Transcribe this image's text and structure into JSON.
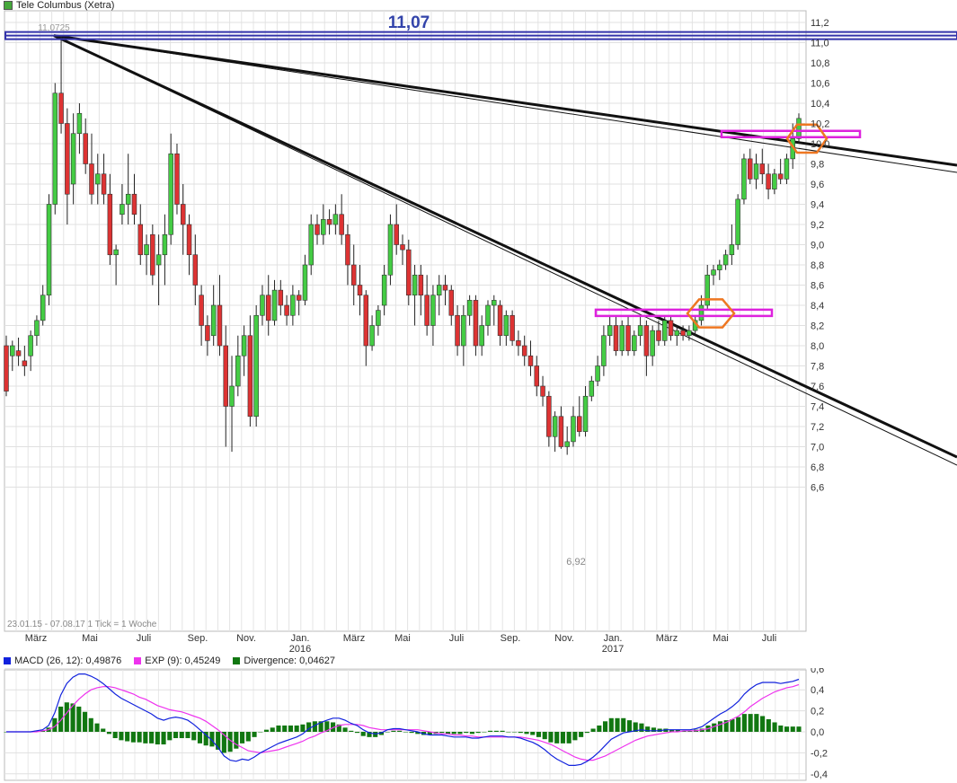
{
  "header": {
    "title": "Tele Columbus (Xetra)",
    "title_color": "#46a83c"
  },
  "annotations": {
    "resistance_label": "11,07",
    "high_label": "11,0725",
    "low_label": "6,92",
    "range_note": "23.01.15 - 07.08.17   1 Tick = 1 Woche"
  },
  "macd_legend": {
    "macd": "MACD (26, 12): 0,49876",
    "exp": "EXP (9): 0,45249",
    "divergence": "Divergence: 0,04627"
  },
  "colors": {
    "up": "#44cc44",
    "down": "#dd3333",
    "resistance": "#3333aa",
    "zone": "#dd22dd",
    "marker": "#ee7722",
    "macd": "#1122dd",
    "signal": "#ee33ee",
    "divergence": "#117711"
  },
  "chart_data": [
    {
      "type": "candlestick",
      "title": "Tele Columbus (Xetra)",
      "ylim": [
        6.4,
        11.3
      ],
      "yticks": [
        "6,6",
        "6,8",
        "7,0",
        "7,2",
        "7,4",
        "7,6",
        "7,8",
        "8,0",
        "8,2",
        "8,4",
        "8,6",
        "8,8",
        "9,0",
        "9,2",
        "9,4",
        "9,6",
        "9,8",
        "10,0",
        "10,2",
        "10,4",
        "10,6",
        "10,8",
        "11,0",
        "11,2"
      ],
      "xticks": [
        "März",
        "Mai",
        "Juli",
        "Sep.",
        "Nov.",
        "Jan.",
        "März",
        "Mai",
        "Juli",
        "Sep.",
        "Nov.",
        "Jan.",
        "März",
        "Mai",
        "Juli"
      ],
      "year_labels": [
        "2016",
        "2017"
      ],
      "ohlc": [
        [
          8.0,
          8.1,
          7.5,
          7.55
        ],
        [
          7.9,
          8.05,
          7.75,
          8.0
        ],
        [
          7.95,
          8.08,
          7.8,
          7.9
        ],
        [
          7.85,
          8.0,
          7.7,
          7.8
        ],
        [
          7.9,
          8.15,
          7.75,
          8.1
        ],
        [
          8.1,
          8.3,
          8.0,
          8.25
        ],
        [
          8.25,
          8.6,
          8.2,
          8.5
        ],
        [
          8.5,
          9.5,
          8.4,
          9.4
        ],
        [
          9.4,
          10.6,
          9.3,
          10.5
        ],
        [
          10.5,
          11.07,
          10.1,
          10.2
        ],
        [
          10.2,
          10.35,
          9.2,
          9.5
        ],
        [
          9.6,
          10.3,
          9.4,
          10.1
        ],
        [
          10.1,
          10.4,
          9.9,
          10.3
        ],
        [
          10.1,
          10.25,
          9.7,
          9.8
        ],
        [
          9.8,
          10.1,
          9.4,
          9.5
        ],
        [
          9.6,
          9.9,
          9.4,
          9.7
        ],
        [
          9.7,
          9.9,
          9.4,
          9.5
        ],
        [
          9.5,
          9.7,
          8.8,
          8.9
        ],
        [
          8.9,
          9.0,
          8.6,
          8.95
        ],
        [
          9.3,
          9.6,
          9.2,
          9.4
        ],
        [
          9.4,
          9.9,
          9.2,
          9.5
        ],
        [
          9.5,
          9.7,
          9.2,
          9.3
        ],
        [
          9.2,
          9.4,
          8.8,
          8.9
        ],
        [
          8.9,
          9.1,
          8.7,
          9.0
        ],
        [
          9.1,
          9.2,
          8.6,
          8.7
        ],
        [
          8.8,
          9.1,
          8.4,
          8.9
        ],
        [
          8.9,
          9.3,
          8.6,
          9.1
        ],
        [
          9.1,
          10.1,
          9.0,
          9.9
        ],
        [
          9.9,
          10.0,
          9.3,
          9.4
        ],
        [
          9.4,
          9.6,
          8.9,
          9.2
        ],
        [
          9.2,
          9.3,
          8.7,
          8.9
        ],
        [
          8.9,
          9.1,
          8.4,
          8.6
        ],
        [
          8.5,
          8.6,
          8.0,
          8.2
        ],
        [
          8.2,
          8.3,
          7.9,
          8.05
        ],
        [
          8.1,
          8.6,
          8.0,
          8.4
        ],
        [
          8.4,
          8.7,
          7.9,
          8.0
        ],
        [
          8.0,
          8.2,
          7.0,
          7.4
        ],
        [
          7.4,
          7.9,
          6.95,
          7.6
        ],
        [
          7.6,
          8.1,
          7.5,
          7.9
        ],
        [
          7.9,
          8.2,
          7.7,
          8.1
        ],
        [
          8.1,
          8.3,
          7.2,
          7.3
        ],
        [
          7.3,
          8.4,
          7.2,
          8.3
        ],
        [
          8.3,
          8.6,
          8.2,
          8.5
        ],
        [
          8.5,
          8.7,
          8.1,
          8.25
        ],
        [
          8.25,
          8.65,
          8.2,
          8.55
        ],
        [
          8.55,
          8.65,
          8.3,
          8.4
        ],
        [
          8.4,
          8.5,
          8.2,
          8.3
        ],
        [
          8.3,
          8.6,
          8.2,
          8.5
        ],
        [
          8.5,
          8.55,
          8.3,
          8.45
        ],
        [
          8.45,
          8.9,
          8.4,
          8.8
        ],
        [
          8.8,
          9.3,
          8.7,
          9.2
        ],
        [
          9.2,
          9.3,
          9.0,
          9.1
        ],
        [
          9.1,
          9.4,
          9.0,
          9.25
        ],
        [
          9.25,
          9.35,
          9.1,
          9.2
        ],
        [
          9.2,
          9.4,
          9.1,
          9.3
        ],
        [
          9.3,
          9.5,
          9.0,
          9.1
        ],
        [
          9.1,
          9.2,
          8.6,
          8.8
        ],
        [
          8.8,
          9.0,
          8.4,
          8.6
        ],
        [
          8.6,
          8.8,
          8.3,
          8.5
        ],
        [
          8.5,
          8.55,
          7.8,
          8.0
        ],
        [
          8.0,
          8.3,
          7.95,
          8.2
        ],
        [
          8.2,
          8.4,
          8.1,
          8.35
        ],
        [
          8.4,
          8.8,
          8.3,
          8.7
        ],
        [
          8.7,
          9.3,
          8.6,
          9.2
        ],
        [
          9.2,
          9.4,
          8.9,
          9.0
        ],
        [
          9.0,
          9.1,
          8.8,
          8.95
        ],
        [
          8.95,
          9.05,
          8.4,
          8.5
        ],
        [
          8.5,
          8.8,
          8.2,
          8.7
        ],
        [
          8.7,
          8.8,
          8.3,
          8.5
        ],
        [
          8.5,
          8.7,
          8.1,
          8.2
        ],
        [
          8.2,
          8.6,
          8.0,
          8.5
        ],
        [
          8.5,
          8.7,
          8.3,
          8.6
        ],
        [
          8.6,
          8.7,
          8.4,
          8.55
        ],
        [
          8.55,
          8.6,
          8.2,
          8.3
        ],
        [
          8.3,
          8.4,
          7.9,
          8.0
        ],
        [
          8.0,
          8.4,
          7.8,
          8.3
        ],
        [
          8.3,
          8.5,
          8.2,
          8.45
        ],
        [
          8.45,
          8.5,
          7.9,
          8.0
        ],
        [
          8.0,
          8.3,
          7.9,
          8.2
        ],
        [
          8.2,
          8.45,
          8.1,
          8.4
        ],
        [
          8.4,
          8.5,
          8.2,
          8.45
        ],
        [
          8.4,
          8.45,
          8.0,
          8.1
        ],
        [
          8.1,
          8.35,
          8.0,
          8.3
        ],
        [
          8.3,
          8.35,
          8.0,
          8.05
        ],
        [
          8.05,
          8.15,
          7.9,
          8.0
        ],
        [
          8.0,
          8.1,
          7.8,
          7.9
        ],
        [
          7.9,
          8.05,
          7.7,
          7.8
        ],
        [
          7.8,
          7.9,
          7.5,
          7.6
        ],
        [
          7.6,
          7.7,
          7.4,
          7.5
        ],
        [
          7.5,
          7.55,
          7.0,
          7.1
        ],
        [
          7.1,
          7.35,
          6.95,
          7.3
        ],
        [
          7.3,
          7.4,
          6.98,
          7.0
        ],
        [
          7.0,
          7.2,
          6.92,
          7.05
        ],
        [
          7.05,
          7.4,
          7.0,
          7.3
        ],
        [
          7.3,
          7.5,
          7.1,
          7.15
        ],
        [
          7.15,
          7.6,
          7.1,
          7.5
        ],
        [
          7.5,
          7.7,
          7.45,
          7.65
        ],
        [
          7.65,
          7.9,
          7.6,
          7.8
        ],
        [
          7.8,
          8.2,
          7.7,
          8.1
        ],
        [
          8.1,
          8.3,
          8.0,
          8.2
        ],
        [
          8.2,
          8.3,
          7.9,
          7.95
        ],
        [
          7.95,
          8.25,
          7.9,
          8.2
        ],
        [
          8.2,
          8.3,
          7.9,
          7.95
        ],
        [
          7.95,
          8.15,
          7.9,
          8.1
        ],
        [
          8.1,
          8.3,
          8.0,
          8.2
        ],
        [
          8.2,
          8.25,
          7.7,
          7.9
        ],
        [
          7.9,
          8.2,
          7.8,
          8.15
        ],
        [
          8.15,
          8.25,
          8.0,
          8.05
        ],
        [
          8.05,
          8.3,
          8.0,
          8.25
        ],
        [
          8.25,
          8.3,
          8.05,
          8.1
        ],
        [
          8.1,
          8.2,
          8.0,
          8.15
        ],
        [
          8.15,
          8.2,
          8.05,
          8.1
        ],
        [
          8.1,
          8.2,
          8.05,
          8.15
        ],
        [
          8.15,
          8.3,
          8.1,
          8.25
        ],
        [
          8.25,
          8.5,
          8.2,
          8.4
        ],
        [
          8.4,
          8.8,
          8.35,
          8.7
        ],
        [
          8.7,
          8.8,
          8.6,
          8.75
        ],
        [
          8.75,
          8.85,
          8.65,
          8.8
        ],
        [
          8.8,
          8.95,
          8.75,
          8.9
        ],
        [
          8.9,
          9.2,
          8.8,
          9.0
        ],
        [
          9.0,
          9.5,
          8.95,
          9.45
        ],
        [
          9.45,
          9.9,
          9.4,
          9.85
        ],
        [
          9.85,
          9.95,
          9.6,
          9.65
        ],
        [
          9.65,
          9.9,
          9.55,
          9.8
        ],
        [
          9.8,
          9.95,
          9.6,
          9.7
        ],
        [
          9.7,
          9.8,
          9.45,
          9.55
        ],
        [
          9.55,
          9.75,
          9.5,
          9.7
        ],
        [
          9.7,
          9.85,
          9.6,
          9.65
        ],
        [
          9.65,
          9.9,
          9.6,
          9.85
        ],
        [
          9.85,
          10.2,
          9.75,
          10.05
        ],
        [
          10.05,
          10.3,
          10.0,
          10.25
        ]
      ],
      "resistance_level": 11.07,
      "support_zone": 8.33,
      "breakout_zone": 10.1
    },
    {
      "type": "line",
      "title": "MACD (26, 12)",
      "ylim": [
        -0.4,
        0.6
      ],
      "yticks": [
        "-0,4",
        "-0,2",
        "0,0",
        "0,2",
        "0,4",
        "0,6"
      ],
      "series": [
        {
          "name": "MACD (26, 12)",
          "values": [
            0.0,
            0.0,
            0.0,
            0.0,
            0.0,
            0.01,
            0.02,
            0.06,
            0.18,
            0.35,
            0.46,
            0.52,
            0.55,
            0.55,
            0.53,
            0.5,
            0.46,
            0.41,
            0.36,
            0.32,
            0.29,
            0.26,
            0.23,
            0.2,
            0.17,
            0.13,
            0.11,
            0.13,
            0.14,
            0.13,
            0.11,
            0.07,
            0.02,
            -0.03,
            -0.08,
            -0.15,
            -0.23,
            -0.27,
            -0.28,
            -0.26,
            -0.27,
            -0.24,
            -0.2,
            -0.17,
            -0.14,
            -0.11,
            -0.09,
            -0.07,
            -0.05,
            -0.02,
            0.03,
            0.06,
            0.09,
            0.11,
            0.13,
            0.13,
            0.11,
            0.08,
            0.06,
            0.02,
            -0.01,
            -0.02,
            -0.01,
            0.02,
            0.03,
            0.03,
            0.02,
            0.01,
            0.0,
            -0.02,
            -0.03,
            -0.03,
            -0.03,
            -0.04,
            -0.05,
            -0.05,
            -0.05,
            -0.06,
            -0.06,
            -0.05,
            -0.04,
            -0.04,
            -0.04,
            -0.05,
            -0.05,
            -0.06,
            -0.08,
            -0.1,
            -0.13,
            -0.17,
            -0.22,
            -0.26,
            -0.29,
            -0.32,
            -0.32,
            -0.31,
            -0.28,
            -0.24,
            -0.19,
            -0.13,
            -0.07,
            -0.04,
            -0.01,
            0.0,
            0.01,
            0.02,
            0.01,
            0.01,
            0.01,
            0.02,
            0.02,
            0.02,
            0.02,
            0.02,
            0.03,
            0.05,
            0.09,
            0.13,
            0.17,
            0.2,
            0.24,
            0.29,
            0.36,
            0.41,
            0.45,
            0.47,
            0.47,
            0.47,
            0.46,
            0.47,
            0.48,
            0.5
          ]
        },
        {
          "name": "EXP (9)",
          "values": [
            0.0,
            0.0,
            0.0,
            0.0,
            0.0,
            0.0,
            0.01,
            0.02,
            0.05,
            0.11,
            0.18,
            0.25,
            0.31,
            0.36,
            0.4,
            0.42,
            0.43,
            0.43,
            0.42,
            0.4,
            0.38,
            0.36,
            0.33,
            0.31,
            0.28,
            0.25,
            0.23,
            0.21,
            0.2,
            0.19,
            0.17,
            0.15,
            0.13,
            0.1,
            0.06,
            0.02,
            -0.03,
            -0.08,
            -0.12,
            -0.15,
            -0.18,
            -0.19,
            -0.2,
            -0.19,
            -0.18,
            -0.17,
            -0.15,
            -0.13,
            -0.11,
            -0.09,
            -0.06,
            -0.04,
            -0.01,
            0.01,
            0.04,
            0.06,
            0.07,
            0.07,
            0.07,
            0.06,
            0.04,
            0.03,
            0.02,
            0.02,
            0.02,
            0.02,
            0.02,
            0.02,
            0.02,
            0.01,
            0.0,
            -0.01,
            -0.02,
            -0.02,
            -0.03,
            -0.03,
            -0.04,
            -0.04,
            -0.05,
            -0.05,
            -0.05,
            -0.05,
            -0.05,
            -0.05,
            -0.05,
            -0.05,
            -0.06,
            -0.07,
            -0.08,
            -0.1,
            -0.12,
            -0.15,
            -0.18,
            -0.21,
            -0.24,
            -0.26,
            -0.27,
            -0.27,
            -0.25,
            -0.23,
            -0.2,
            -0.17,
            -0.14,
            -0.11,
            -0.08,
            -0.06,
            -0.04,
            -0.03,
            -0.02,
            -0.01,
            0.0,
            0.0,
            0.01,
            0.01,
            0.01,
            0.02,
            0.03,
            0.05,
            0.07,
            0.09,
            0.12,
            0.15,
            0.19,
            0.24,
            0.28,
            0.32,
            0.35,
            0.38,
            0.4,
            0.42,
            0.43,
            0.45
          ]
        }
      ]
    }
  ]
}
